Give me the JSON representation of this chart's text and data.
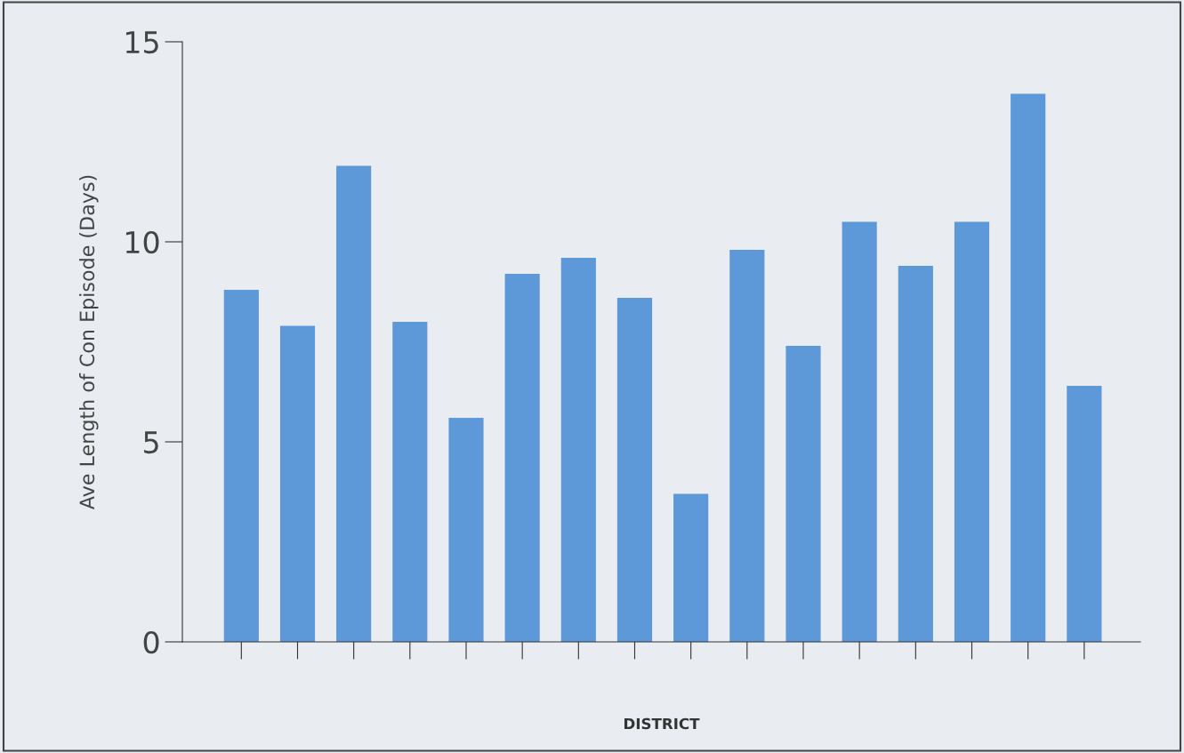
{
  "chart_data": {
    "type": "bar",
    "xlabel": "DISTRICT",
    "ylabel": "Ave Length of Con Episode (Days)",
    "categories": [
      null,
      null,
      null,
      null,
      null,
      null,
      null,
      null,
      null,
      null,
      null,
      null,
      null,
      null,
      null,
      null
    ],
    "values": [
      8.8,
      7.9,
      11.9,
      8.0,
      5.6,
      9.2,
      9.6,
      8.6,
      3.7,
      9.8,
      7.4,
      10.5,
      9.4,
      10.5,
      13.7,
      6.4
    ],
    "color": "#5d99d8",
    "ylim": [
      0,
      15
    ],
    "yticks": [
      0,
      5,
      10,
      15
    ],
    "grid": false
  }
}
